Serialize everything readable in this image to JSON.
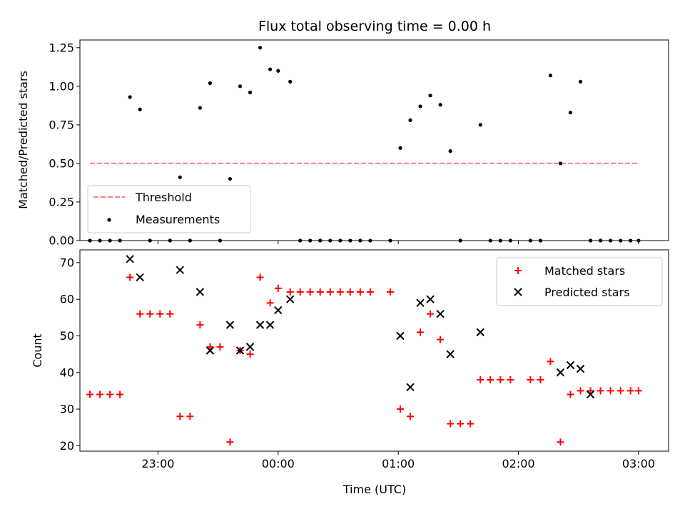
{
  "chart_data": [
    {
      "type": "scatter",
      "title": "Flux total observing time = 0.00 h",
      "xlabel": "",
      "ylabel": "Matched/Predicted stars",
      "ylim": [
        0.0,
        1.3
      ],
      "yticks": [
        "0.00",
        "0.25",
        "0.50",
        "0.75",
        "1.00",
        "1.25"
      ],
      "ytick_values": [
        0.0,
        0.25,
        0.5,
        0.75,
        1.0,
        1.25
      ],
      "legend": {
        "placement": "lower-left",
        "entries": [
          "Threshold",
          "Measurements"
        ]
      },
      "series": [
        {
          "name": "Threshold",
          "style": "dashed-line",
          "color": "#ff8080",
          "x": [
            "22:26",
            "03:00"
          ],
          "y": [
            0.5,
            0.5
          ]
        },
        {
          "name": "Measurements",
          "style": "dot",
          "color": "#000000",
          "x": [
            "22:26",
            "22:31",
            "22:36",
            "22:41",
            "22:46",
            "22:51",
            "22:56",
            "23:06",
            "23:11",
            "23:16",
            "23:21",
            "23:26",
            "23:31",
            "23:36",
            "23:41",
            "23:46",
            "23:51",
            "23:56",
            "00:00",
            "00:06",
            "00:11",
            "00:16",
            "00:21",
            "00:26",
            "00:31",
            "00:36",
            "00:41",
            "00:46",
            "00:56",
            "01:01",
            "01:06",
            "01:11",
            "01:16",
            "01:21",
            "01:26",
            "01:31",
            "01:41",
            "01:46",
            "01:51",
            "01:56",
            "02:06",
            "02:11",
            "02:16",
            "02:21",
            "02:26",
            "02:31",
            "02:36",
            "02:41",
            "02:46",
            "02:51",
            "02:56",
            "03:00"
          ],
          "y": [
            0.0,
            0.0,
            0.0,
            0.0,
            0.93,
            0.85,
            0.0,
            0.0,
            0.41,
            0.0,
            0.86,
            1.02,
            0.0,
            0.4,
            1.0,
            0.96,
            1.25,
            1.11,
            1.1,
            1.03,
            0.0,
            0.0,
            0.0,
            0.0,
            0.0,
            0.0,
            0.0,
            0.0,
            0.0,
            0.6,
            0.78,
            0.87,
            0.94,
            0.88,
            0.58,
            0.0,
            0.75,
            0.0,
            0.0,
            0.0,
            0.0,
            0.0,
            1.07,
            0.5,
            0.83,
            1.03,
            0.0,
            0.0,
            0.0,
            0.0,
            0.0,
            0.0
          ]
        }
      ]
    },
    {
      "type": "scatter",
      "title": "",
      "xlabel": "Time (UTC)",
      "ylabel": "Count",
      "ylim": [
        18.5,
        73.5
      ],
      "yticks": [
        "20",
        "30",
        "40",
        "50",
        "60",
        "70"
      ],
      "ytick_values": [
        20,
        30,
        40,
        50,
        60,
        70
      ],
      "xticks": [
        "23:00",
        "00:00",
        "01:00",
        "02:00",
        "03:00"
      ],
      "xlim": [
        "22:21",
        "03:15"
      ],
      "legend": {
        "placement": "top-right",
        "entries": [
          "Matched stars",
          "Predicted stars"
        ]
      },
      "series": [
        {
          "name": "Matched stars",
          "marker": "plus",
          "color": "#ff0000",
          "x": [
            "22:26",
            "22:31",
            "22:36",
            "22:41",
            "22:46",
            "22:51",
            "22:56",
            "23:01",
            "23:06",
            "23:11",
            "23:16",
            "23:21",
            "23:26",
            "23:31",
            "23:36",
            "23:41",
            "23:46",
            "23:51",
            "23:56",
            "00:00",
            "00:06",
            "00:11",
            "00:16",
            "00:21",
            "00:26",
            "00:31",
            "00:36",
            "00:41",
            "00:46",
            "00:56",
            "01:01",
            "01:06",
            "01:11",
            "01:16",
            "01:21",
            "01:26",
            "01:31",
            "01:36",
            "01:41",
            "01:46",
            "01:51",
            "01:56",
            "02:06",
            "02:11",
            "02:16",
            "02:21",
            "02:26",
            "02:31",
            "02:36",
            "02:41",
            "02:46",
            "02:51",
            "02:56",
            "03:00"
          ],
          "y": [
            34,
            34,
            34,
            34,
            66,
            56,
            56,
            56,
            56,
            28,
            28,
            53,
            47,
            47,
            21,
            46,
            45,
            66,
            59,
            63,
            62,
            62,
            62,
            62,
            62,
            62,
            62,
            62,
            62,
            62,
            30,
            28,
            51,
            56,
            49,
            26,
            26,
            26,
            38,
            38,
            38,
            38,
            38,
            38,
            43,
            21,
            34,
            35,
            35,
            35,
            35,
            35,
            35,
            35
          ]
        },
        {
          "name": "Predicted stars",
          "marker": "x",
          "color": "#000000",
          "x": [
            "22:46",
            "22:51",
            "23:11",
            "23:21",
            "23:26",
            "23:36",
            "23:41",
            "23:46",
            "23:51",
            "23:56",
            "00:00",
            "00:06",
            "01:01",
            "01:06",
            "01:11",
            "01:16",
            "01:21",
            "01:26",
            "01:41",
            "02:21",
            "02:26",
            "02:31",
            "02:36"
          ],
          "y": [
            71,
            66,
            68,
            62,
            46,
            53,
            46,
            47,
            53,
            53,
            57,
            60,
            50,
            36,
            59,
            60,
            56,
            45,
            51,
            40,
            42,
            41,
            34
          ]
        }
      ]
    }
  ]
}
